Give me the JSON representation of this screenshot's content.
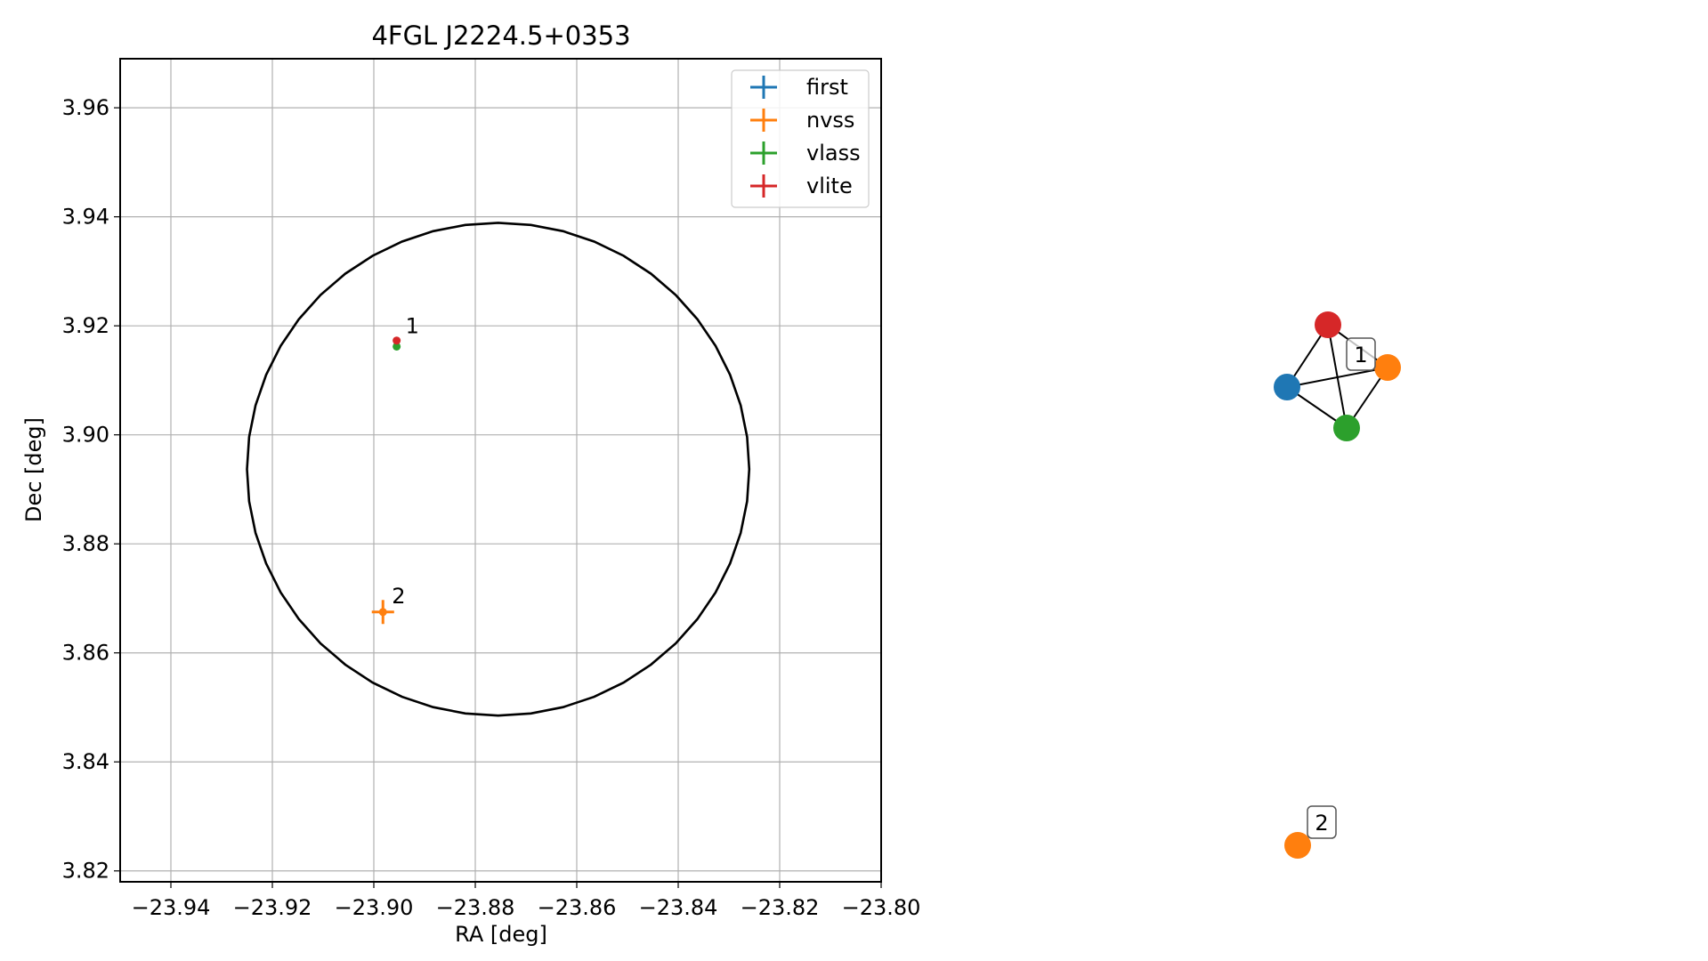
{
  "chart_data": [
    {
      "type": "scatter",
      "title": "4FGL J2224.5+0353",
      "xlabel": "RA [deg]",
      "ylabel": "Dec [deg]",
      "xlim": [
        -23.95,
        -23.8
      ],
      "ylim": [
        3.818,
        3.969
      ],
      "xticks": [
        -23.94,
        -23.92,
        -23.9,
        -23.88,
        -23.86,
        -23.84,
        -23.82,
        -23.8
      ],
      "xtick_labels": [
        "−23.94",
        "−23.92",
        "−23.90",
        "−23.88",
        "−23.86",
        "−23.84",
        "−23.82",
        "−23.80"
      ],
      "yticks": [
        3.82,
        3.84,
        3.86,
        3.88,
        3.9,
        3.92,
        3.94,
        3.96
      ],
      "ytick_labels": [
        "3.82",
        "3.84",
        "3.86",
        "3.88",
        "3.90",
        "3.92",
        "3.94",
        "3.96"
      ],
      "grid": true,
      "legend_position": "top-right",
      "series": [
        {
          "name": "first",
          "color": "#1f77b4",
          "points": []
        },
        {
          "name": "nvss",
          "color": "#ff7f0e",
          "points": [
            {
              "x": -23.8982,
              "y": 3.8675,
              "xerr": 0.0022,
              "yerr": 0.0022
            }
          ]
        },
        {
          "name": "vlass",
          "color": "#2ca02c",
          "points": [
            {
              "x": -23.8955,
              "y": 3.9162,
              "xerr": 0.0003,
              "yerr": 0.0003
            }
          ]
        },
        {
          "name": "vlite",
          "color": "#d62728",
          "points": [
            {
              "x": -23.8955,
              "y": 3.9173,
              "xerr": 0.0003,
              "yerr": 0.0003
            }
          ]
        }
      ],
      "ellipse": {
        "center": [
          -23.8755,
          3.8937
        ],
        "semi_x": 0.0495,
        "semi_y": 0.0452
      },
      "source_labels": [
        {
          "text": "1",
          "x": -23.8955,
          "y": 3.9173
        },
        {
          "text": "2",
          "x": -23.8982,
          "y": 3.8675
        }
      ]
    },
    {
      "type": "network",
      "nodes": [
        {
          "id": "first",
          "color": "#1f77b4"
        },
        {
          "id": "nvss",
          "color": "#ff7f0e"
        },
        {
          "id": "vlass",
          "color": "#2ca02c"
        },
        {
          "id": "vlite",
          "color": "#d62728"
        },
        {
          "id": "nvss-2",
          "color": "#ff7f0e"
        }
      ],
      "edges": [
        [
          "first",
          "vlite"
        ],
        [
          "first",
          "nvss"
        ],
        [
          "first",
          "vlass"
        ],
        [
          "vlite",
          "nvss"
        ],
        [
          "vlite",
          "vlass"
        ],
        [
          "nvss",
          "vlass"
        ]
      ],
      "group_labels": [
        "1",
        "2"
      ]
    }
  ]
}
